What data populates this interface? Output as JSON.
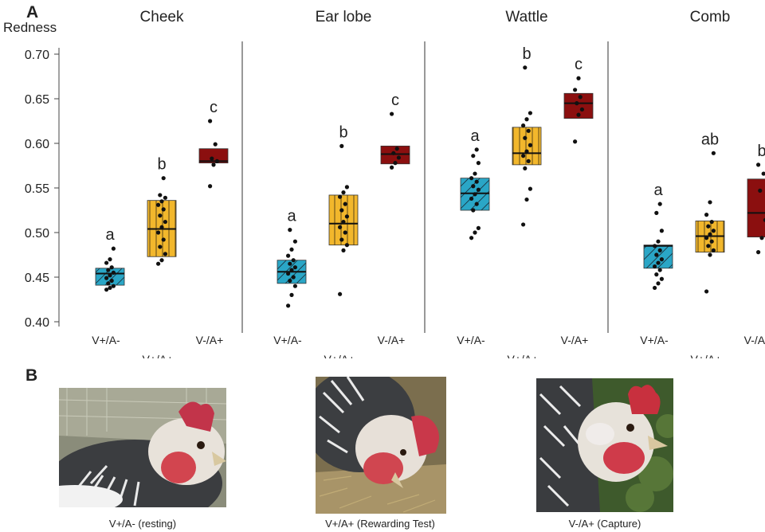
{
  "chart_data": {
    "type": "box",
    "panel_label": "A",
    "ylabel": "Redness",
    "ylim": [
      0.4,
      0.7
    ],
    "yticks": [
      "0.40",
      "0.45",
      "0.50",
      "0.55",
      "0.60",
      "0.65",
      "0.70"
    ],
    "categories": [
      "V+/A-",
      "V+/A+",
      "V-/A+"
    ],
    "colors": {
      "V+/A-": "#2aa6c6",
      "V+/A+": "#f2b72c",
      "V-/A+": "#8b0f0f"
    },
    "facets": [
      {
        "title": "Cheek",
        "groups": [
          {
            "category": "V+/A-",
            "q1": 0.441,
            "median": 0.454,
            "q3": 0.46,
            "letter": "a",
            "points": [
              0.436,
              0.438,
              0.44,
              0.443,
              0.446,
              0.449,
              0.452,
              0.455,
              0.458,
              0.461,
              0.466,
              0.47,
              0.482
            ]
          },
          {
            "category": "V+/A+",
            "q1": 0.473,
            "median": 0.504,
            "q3": 0.536,
            "letter": "b",
            "points": [
              0.465,
              0.469,
              0.476,
              0.484,
              0.492,
              0.5,
              0.506,
              0.512,
              0.519,
              0.526,
              0.531,
              0.535,
              0.539,
              0.542,
              0.561
            ]
          },
          {
            "category": "V-/A+",
            "q1": 0.578,
            "median": 0.58,
            "q3": 0.594,
            "letter": "c",
            "points": [
              0.552,
              0.576,
              0.58,
              0.583,
              0.599,
              0.625
            ]
          }
        ]
      },
      {
        "title": "Ear lobe",
        "groups": [
          {
            "category": "V+/A-",
            "q1": 0.443,
            "median": 0.456,
            "q3": 0.469,
            "letter": "a",
            "points": [
              0.418,
              0.43,
              0.44,
              0.446,
              0.45,
              0.454,
              0.458,
              0.461,
              0.465,
              0.469,
              0.474,
              0.481,
              0.49,
              0.503
            ]
          },
          {
            "category": "V+/A+",
            "q1": 0.486,
            "median": 0.51,
            "q3": 0.542,
            "letter": "b",
            "points": [
              0.431,
              0.48,
              0.486,
              0.492,
              0.5,
              0.506,
              0.512,
              0.518,
              0.525,
              0.532,
              0.54,
              0.545,
              0.551,
              0.597
            ]
          },
          {
            "category": "V-/A+",
            "q1": 0.577,
            "median": 0.588,
            "q3": 0.597,
            "letter": "c",
            "points": [
              0.573,
              0.578,
              0.584,
              0.589,
              0.594,
              0.633
            ]
          }
        ]
      },
      {
        "title": "Wattle",
        "groups": [
          {
            "category": "V+/A-",
            "q1": 0.525,
            "median": 0.544,
            "q3": 0.561,
            "letter": "a",
            "points": [
              0.494,
              0.5,
              0.505,
              0.525,
              0.532,
              0.538,
              0.543,
              0.548,
              0.552,
              0.557,
              0.561,
              0.566,
              0.578,
              0.586,
              0.593
            ]
          },
          {
            "category": "V+/A+",
            "q1": 0.576,
            "median": 0.589,
            "q3": 0.618,
            "letter": "b",
            "points": [
              0.509,
              0.537,
              0.549,
              0.572,
              0.58,
              0.586,
              0.591,
              0.598,
              0.606,
              0.614,
              0.62,
              0.627,
              0.634,
              0.685
            ]
          },
          {
            "category": "V-/A+",
            "q1": 0.628,
            "median": 0.645,
            "q3": 0.656,
            "letter": "c",
            "points": [
              0.602,
              0.632,
              0.638,
              0.645,
              0.652,
              0.66,
              0.673
            ]
          }
        ]
      },
      {
        "title": "Comb",
        "groups": [
          {
            "category": "V+/A-",
            "q1": 0.46,
            "median": 0.485,
            "q3": 0.486,
            "letter": "a",
            "points": [
              0.438,
              0.443,
              0.448,
              0.453,
              0.458,
              0.462,
              0.466,
              0.47,
              0.475,
              0.48,
              0.485,
              0.49,
              0.502,
              0.522,
              0.532
            ]
          },
          {
            "category": "V+/A+",
            "q1": 0.478,
            "median": 0.496,
            "q3": 0.513,
            "letter": "ab",
            "points": [
              0.434,
              0.475,
              0.48,
              0.485,
              0.49,
              0.494,
              0.498,
              0.502,
              0.507,
              0.512,
              0.52,
              0.534,
              0.589
            ]
          },
          {
            "category": "V-/A+",
            "q1": 0.495,
            "median": 0.522,
            "q3": 0.56,
            "letter": "b",
            "points": [
              0.478,
              0.494,
              0.514,
              0.547,
              0.566,
              0.576
            ]
          }
        ]
      }
    ]
  },
  "panel_b": {
    "label": "B",
    "photos": [
      {
        "caption": "V+/A- (resting)"
      },
      {
        "caption": "V+/A+ (Rewarding Test)"
      },
      {
        "caption": "V-/A+ (Capture)"
      }
    ]
  }
}
